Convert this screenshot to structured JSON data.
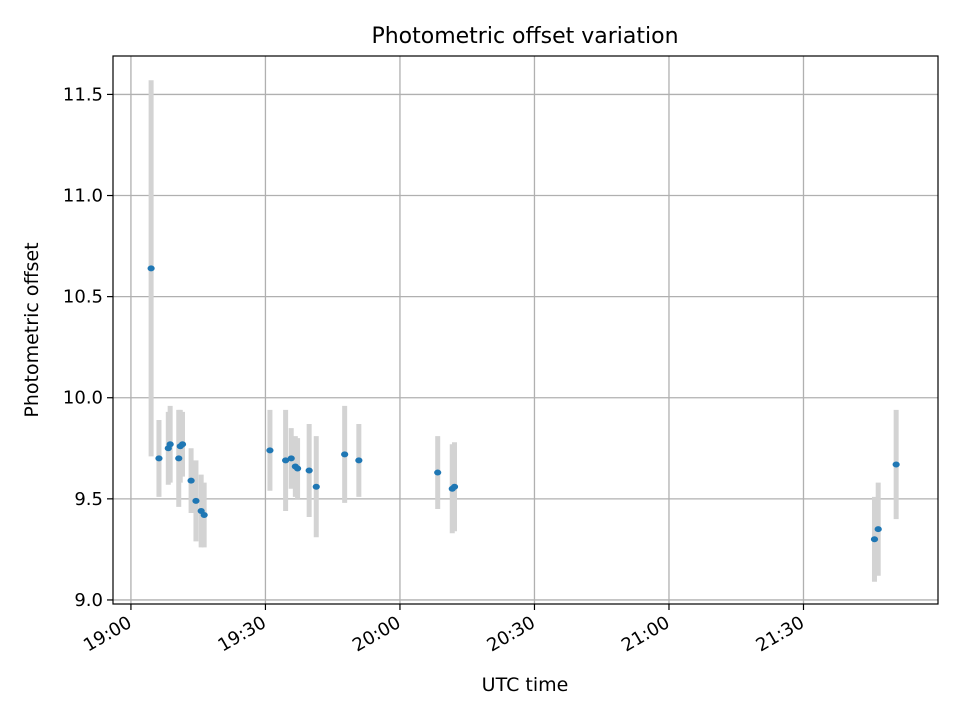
{
  "chart_data": {
    "type": "scatter",
    "title": "Photometric offset variation",
    "xlabel": "UTC time",
    "ylabel": "Photometric offset",
    "xlim": [
      "18:56",
      "22:00"
    ],
    "ylim": [
      8.98,
      11.69
    ],
    "xticks": [
      "19:00",
      "19:30",
      "20:00",
      "20:30",
      "21:00",
      "21:30"
    ],
    "yticks": [
      "9.0",
      "9.5",
      "10.0",
      "10.5",
      "11.0",
      "11.5"
    ],
    "grid": true,
    "colors": {
      "point": "#1f77b4",
      "errorbar": "#d3d3d3",
      "grid": "#b0b0b0",
      "axes": "#000000"
    },
    "series": [
      {
        "points": [
          {
            "x": "19:04:30",
            "y": 10.64,
            "err": 0.93
          },
          {
            "x": "19:06:15",
            "y": 9.7,
            "err": 0.19
          },
          {
            "x": "19:08:20",
            "y": 9.75,
            "err": 0.18
          },
          {
            "x": "19:08:45",
            "y": 9.77,
            "err": 0.19
          },
          {
            "x": "19:10:40",
            "y": 9.7,
            "err": 0.24
          },
          {
            "x": "19:11:00",
            "y": 9.76,
            "err": 0.18
          },
          {
            "x": "19:11:30",
            "y": 9.77,
            "err": 0.16
          },
          {
            "x": "19:13:25",
            "y": 9.59,
            "err": 0.16
          },
          {
            "x": "19:14:30",
            "y": 9.49,
            "err": 0.2
          },
          {
            "x": "19:15:40",
            "y": 9.44,
            "err": 0.18
          },
          {
            "x": "19:16:20",
            "y": 9.42,
            "err": 0.16
          },
          {
            "x": "19:31:00",
            "y": 9.74,
            "err": 0.2
          },
          {
            "x": "19:34:30",
            "y": 9.69,
            "err": 0.25
          },
          {
            "x": "19:35:45",
            "y": 9.7,
            "err": 0.15
          },
          {
            "x": "19:36:40",
            "y": 9.66,
            "err": 0.15
          },
          {
            "x": "19:37:10",
            "y": 9.65,
            "err": 0.15
          },
          {
            "x": "19:39:45",
            "y": 9.64,
            "err": 0.23
          },
          {
            "x": "19:41:20",
            "y": 9.56,
            "err": 0.25
          },
          {
            "x": "19:47:40",
            "y": 9.72,
            "err": 0.24
          },
          {
            "x": "19:50:50",
            "y": 9.69,
            "err": 0.18
          },
          {
            "x": "20:08:25",
            "y": 9.63,
            "err": 0.18
          },
          {
            "x": "20:11:40",
            "y": 9.55,
            "err": 0.22
          },
          {
            "x": "20:12:10",
            "y": 9.56,
            "err": 0.22
          },
          {
            "x": "21:45:50",
            "y": 9.3,
            "err": 0.21
          },
          {
            "x": "21:46:40",
            "y": 9.35,
            "err": 0.23
          },
          {
            "x": "21:50:40",
            "y": 9.67,
            "err": 0.27
          }
        ]
      }
    ]
  }
}
